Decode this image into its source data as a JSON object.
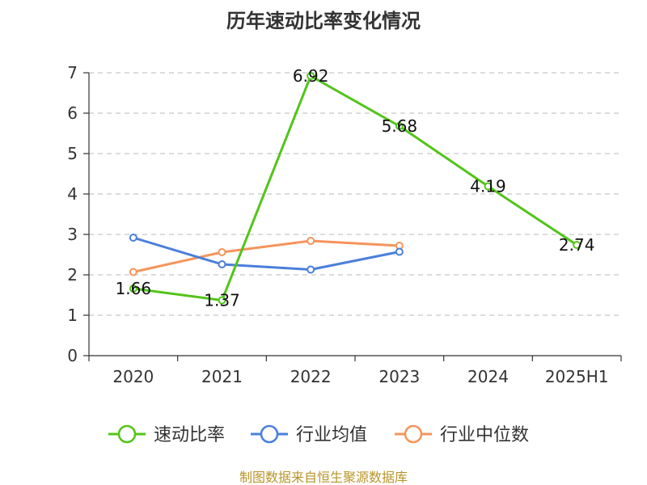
{
  "chart_data": {
    "type": "line",
    "title": "历年速动比率变化情况",
    "categories": [
      "2020",
      "2021",
      "2022",
      "2023",
      "2024",
      "2025H1"
    ],
    "ylim": [
      0,
      7
    ],
    "yticks": [
      "0",
      "1",
      "2",
      "3",
      "4",
      "5",
      "6",
      "7"
    ],
    "grid": "horizontal-dashed",
    "legend_position": "bottom",
    "series": [
      {
        "name": "速动比率",
        "color": "#52c41a",
        "values": [
          1.66,
          1.37,
          6.92,
          5.68,
          4.19,
          2.74
        ],
        "labels": [
          "1.66",
          "1.37",
          "6.92",
          "5.68",
          "4.19",
          "2.74"
        ]
      },
      {
        "name": "行业均值",
        "color": "#4a7fdb",
        "values": [
          2.92,
          2.26,
          2.13,
          2.57,
          null,
          null
        ]
      },
      {
        "name": "行业中位数",
        "color": "#f5945a",
        "values": [
          2.07,
          2.56,
          2.84,
          2.72,
          null,
          null
        ]
      }
    ]
  },
  "footer": {
    "source": "制图数据来自恒生聚源数据库",
    "source_color": "#b8952a"
  }
}
